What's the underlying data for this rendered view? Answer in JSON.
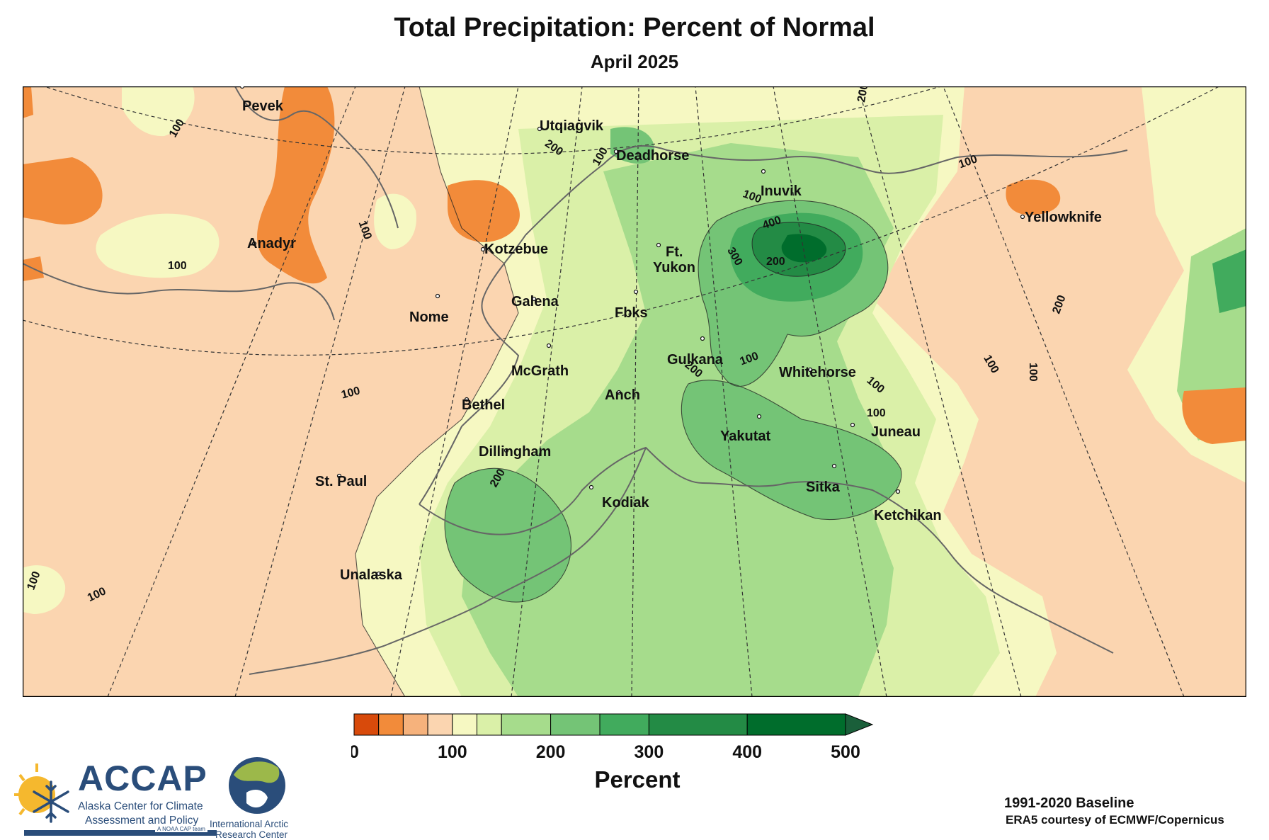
{
  "title": "Total Precipitation: Percent of Normal",
  "subtitle": "April 2025",
  "cities": [
    {
      "name": "Pevek"
    },
    {
      "name": "Anadyr"
    },
    {
      "name": "Utqiaġvik"
    },
    {
      "name": "Deadhorse"
    },
    {
      "name": "Inuvik"
    },
    {
      "name": "Yellowknife"
    },
    {
      "name": "Kotzebue"
    },
    {
      "name": "Ft."
    },
    {
      "name": "Yukon"
    },
    {
      "name": "Galena"
    },
    {
      "name": "Nome"
    },
    {
      "name": "Fbks"
    },
    {
      "name": "Gulkana"
    },
    {
      "name": "McGrath"
    },
    {
      "name": "Whitehorse"
    },
    {
      "name": "Anch"
    },
    {
      "name": "Bethel"
    },
    {
      "name": "Yakutat"
    },
    {
      "name": "Juneau"
    },
    {
      "name": "Dillingham"
    },
    {
      "name": "St. Paul"
    },
    {
      "name": "Kodiak"
    },
    {
      "name": "Sitka"
    },
    {
      "name": "Ketchikan"
    },
    {
      "name": "Unalaska"
    }
  ],
  "contour_labels": [
    "100",
    "200",
    "300",
    "400"
  ],
  "legend": {
    "unit": "Percent",
    "tick_labels": [
      "0",
      "100",
      "200",
      "300",
      "400",
      "500"
    ],
    "breaks": [
      0,
      25,
      50,
      75,
      100,
      125,
      150,
      200,
      250,
      300,
      400,
      500
    ],
    "colors": [
      "#d84a0b",
      "#f28b3a",
      "#f6b27c",
      "#fbd5b0",
      "#f6f8c2",
      "#daf0a8",
      "#a6dc8c",
      "#74c476",
      "#41ab5d",
      "#238b45",
      "#006d2c"
    ],
    "extend_color": "#1a5f3a"
  },
  "logos": {
    "accap_name": "ACCAP",
    "accap_line1": "Alaska Center for Climate",
    "accap_line2": "Assessment and Policy",
    "accap_tag": "A NOAA CAP team",
    "iarc_line1": "International Arctic",
    "iarc_line2": "Research Center"
  },
  "footer": {
    "baseline": "1991-2020 Baseline",
    "credit": "ERA5 courtesy of ECMWF/Copernicus"
  }
}
